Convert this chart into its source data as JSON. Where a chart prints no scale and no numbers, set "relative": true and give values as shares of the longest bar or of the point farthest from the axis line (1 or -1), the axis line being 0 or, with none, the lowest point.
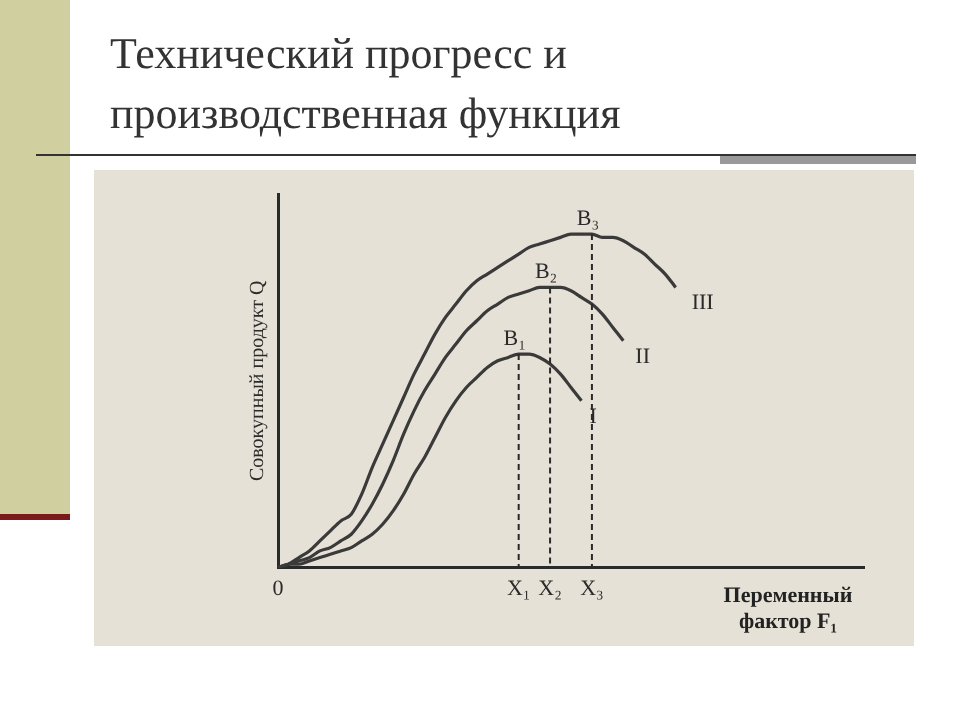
{
  "chart_data": {
    "type": "line",
    "relative": true,
    "title": "Технический прогресс и производственная функция",
    "ylabel": "Совокупный продукт Q",
    "xlabel": "Переменный фактор F₁",
    "categories": [
      "0",
      null,
      null,
      null,
      null,
      null,
      null,
      null,
      null,
      null,
      null,
      null,
      null,
      null,
      null,
      null,
      null,
      null,
      null,
      null,
      null,
      null,
      null,
      "X₁",
      null,
      null,
      "X₂",
      null,
      null,
      null,
      "X₃",
      null,
      null,
      null,
      null,
      null,
      null,
      null,
      null,
      null,
      null,
      null,
      null,
      null,
      null,
      null,
      null,
      null,
      null,
      null,
      null,
      null,
      null,
      null,
      null,
      null,
      null
    ],
    "series": [
      {
        "name": "I",
        "color": "#3a3a3a",
        "values": [
          0,
          0.01,
          0.01,
          0.02,
          0.03,
          0.04,
          0.05,
          0.06,
          0.08,
          0.1,
          0.13,
          0.17,
          0.22,
          0.28,
          0.33,
          0.39,
          0.45,
          0.5,
          0.54,
          0.57,
          0.6,
          0.62,
          0.63,
          0.64,
          0.64,
          0.63,
          0.61,
          0.58,
          0.54,
          0.5,
          null,
          null,
          null,
          null,
          null,
          null,
          null,
          null,
          null,
          null,
          null,
          null,
          null,
          null,
          null,
          null,
          null,
          null,
          null,
          null,
          null,
          null,
          null,
          null,
          null,
          null,
          null
        ]
      },
      {
        "name": "II",
        "color": "#3a3a3a",
        "values": [
          0,
          0.01,
          0.02,
          0.03,
          0.05,
          0.06,
          0.08,
          0.1,
          0.14,
          0.19,
          0.25,
          0.32,
          0.4,
          0.47,
          0.53,
          0.58,
          0.63,
          0.67,
          0.71,
          0.74,
          0.77,
          0.79,
          0.81,
          0.82,
          0.83,
          0.84,
          0.84,
          0.84,
          0.83,
          0.81,
          0.79,
          0.76,
          0.72,
          0.68,
          null,
          null,
          null,
          null,
          null,
          null,
          null,
          null,
          null,
          null,
          null,
          null,
          null,
          null,
          null,
          null,
          null,
          null,
          null,
          null,
          null,
          null,
          null
        ]
      },
      {
        "name": "III",
        "color": "#3a3a3a",
        "values": [
          0,
          0.01,
          0.03,
          0.05,
          0.08,
          0.11,
          0.14,
          0.16,
          0.22,
          0.3,
          0.37,
          0.44,
          0.51,
          0.58,
          0.64,
          0.7,
          0.75,
          0.79,
          0.83,
          0.86,
          0.88,
          0.9,
          0.92,
          0.94,
          0.96,
          0.97,
          0.98,
          0.99,
          1,
          1,
          1,
          0.99,
          0.99,
          0.98,
          0.96,
          0.94,
          0.91,
          0.88,
          0.84,
          null,
          null,
          null,
          null,
          null,
          null,
          null,
          null,
          null,
          null,
          null,
          null,
          null,
          null,
          null,
          null,
          null,
          null
        ]
      }
    ],
    "annotations": [
      {
        "text": "B₁",
        "x": "X₁",
        "y": 0.64
      },
      {
        "text": "B₂",
        "x": "X₂",
        "y": 0.84
      },
      {
        "text": "B₃",
        "x": "X₃",
        "y": 1
      }
    ],
    "legend": false,
    "marker": "none",
    "line_style": "solid"
  }
}
